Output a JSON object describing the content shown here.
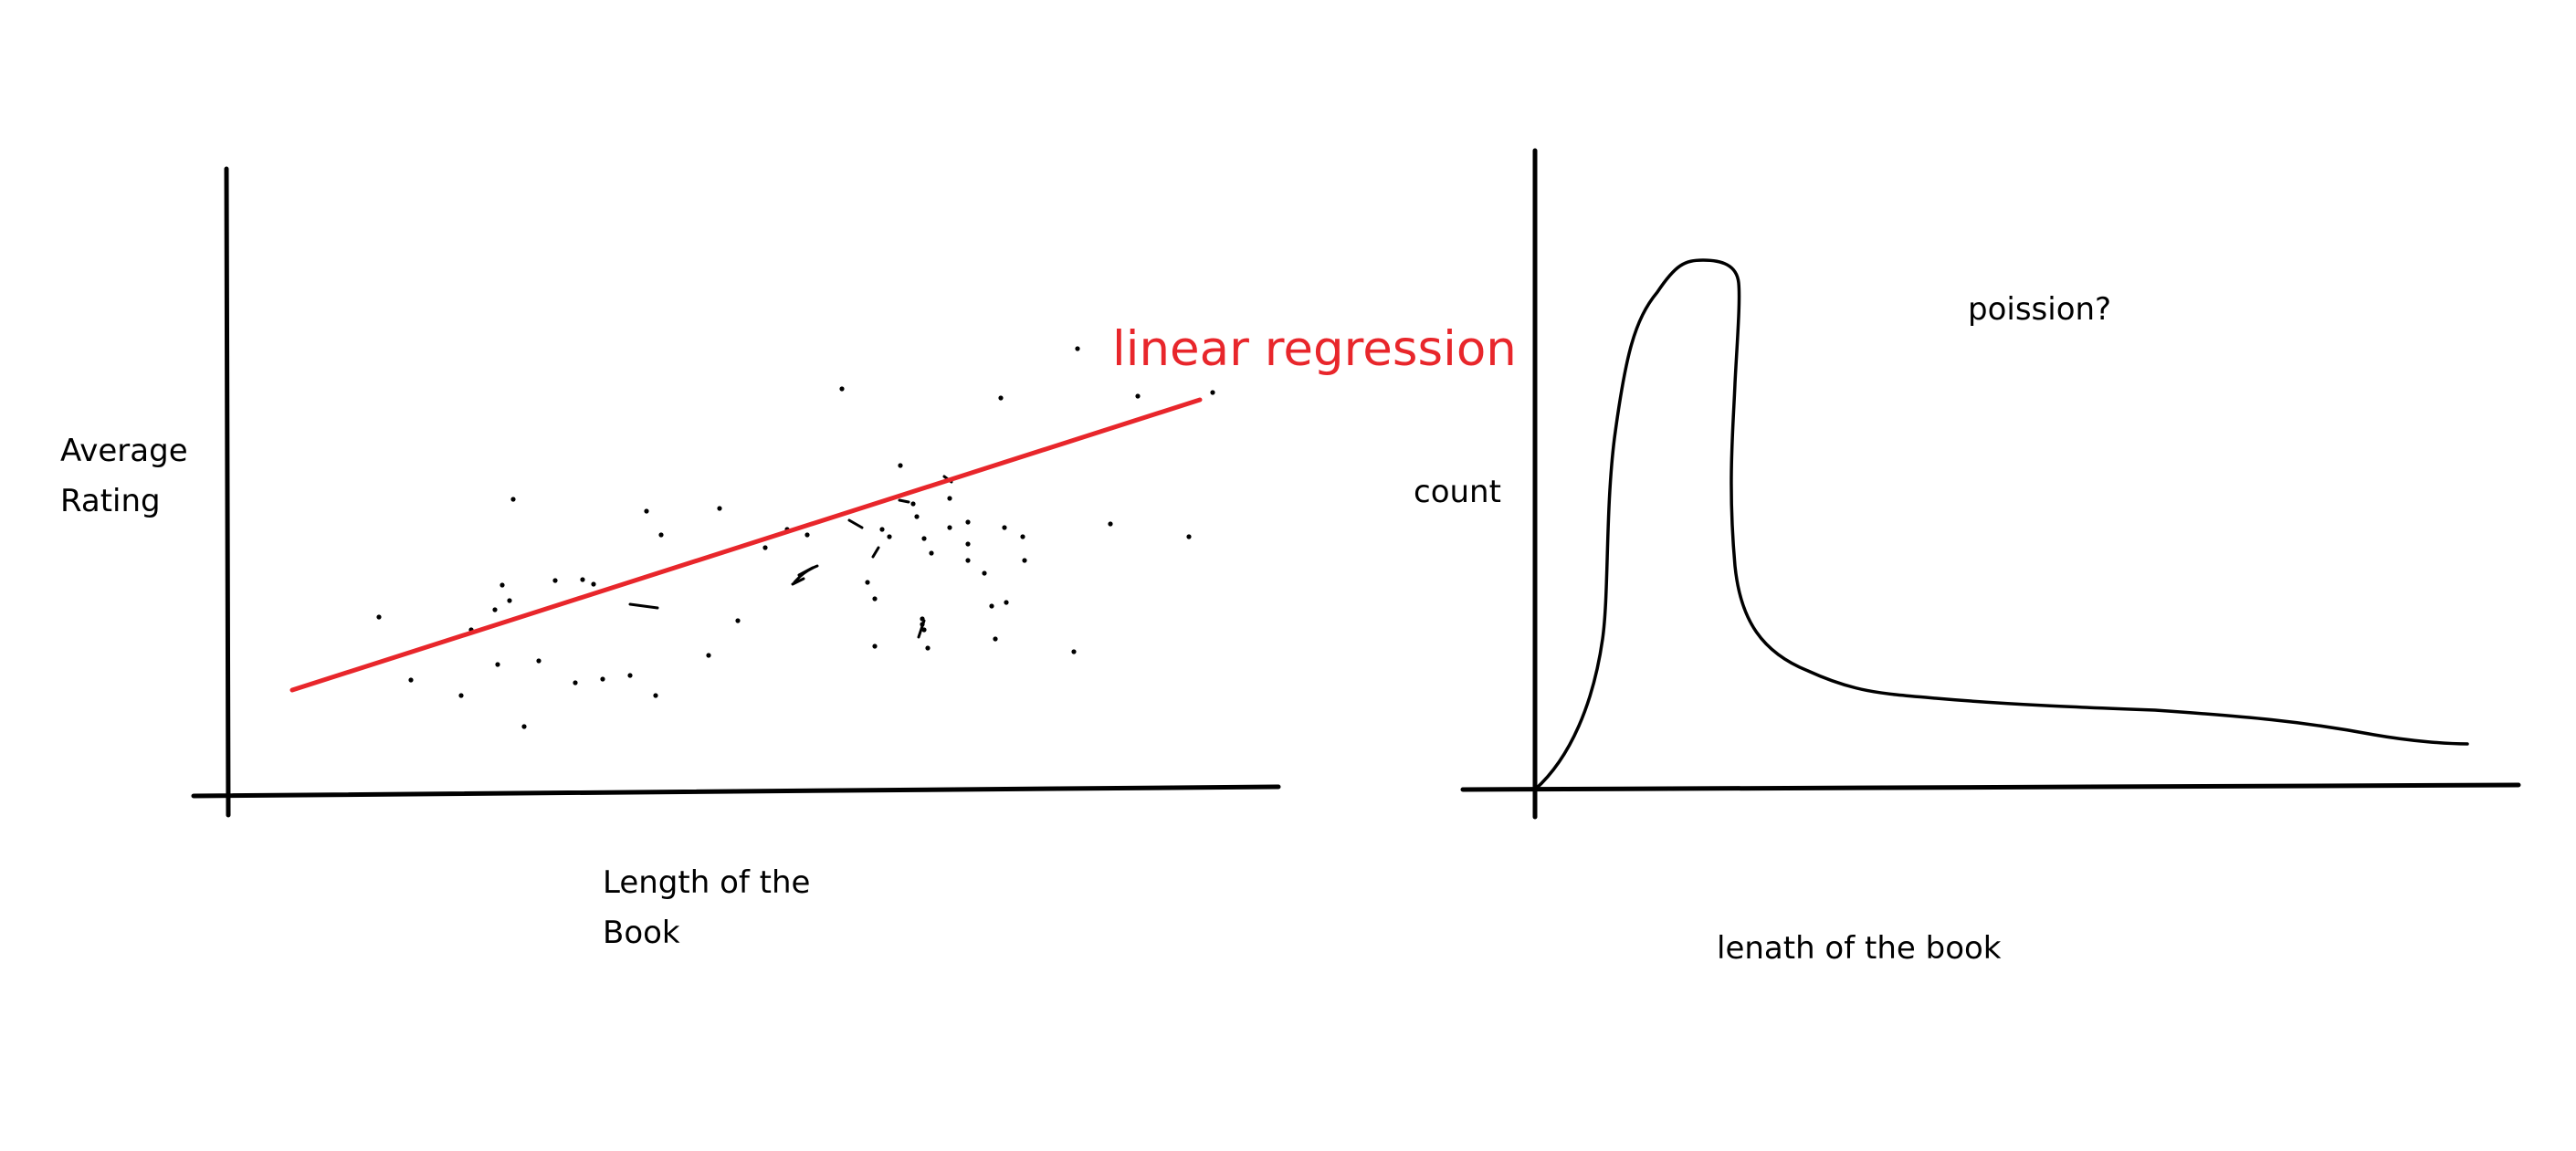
{
  "colors": {
    "background": "#ffffff",
    "ink": "#000000",
    "regression": "#e8262b"
  },
  "left_panel": {
    "ylabel_lines": [
      "Average",
      "Rating"
    ],
    "xlabel_lines": [
      "Length of the",
      "Book"
    ],
    "fit_label": "linear regression"
  },
  "right_panel": {
    "ylabel": "count",
    "xlabel": "lenath of the book",
    "annotation": "poission?"
  }
}
